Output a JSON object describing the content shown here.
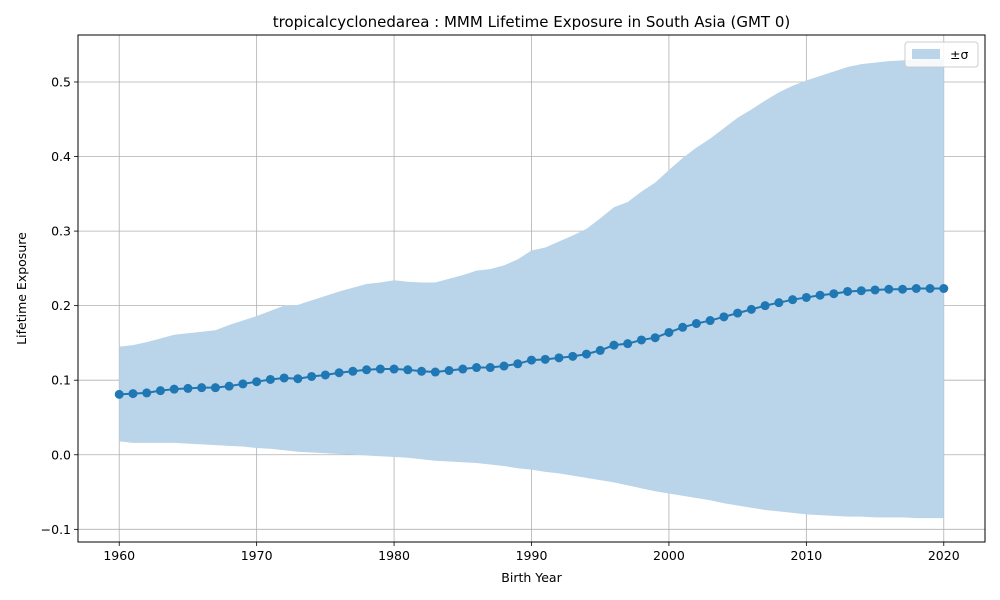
{
  "chart_data": {
    "type": "line",
    "title": "tropicalcyclonedarea : MMM Lifetime Exposure in South Asia (GMT 0)",
    "xlabel": "Birth Year",
    "ylabel": "Lifetime Exposure",
    "xlim": [
      1957,
      2023
    ],
    "ylim": [
      -0.117,
      0.563
    ],
    "xticks": [
      1960,
      1970,
      1980,
      1990,
      2000,
      2010,
      2020
    ],
    "xtick_labels": [
      "1960",
      "1970",
      "1980",
      "1990",
      "2000",
      "2010",
      "2020"
    ],
    "yticks": [
      -0.1,
      0.0,
      0.1,
      0.2,
      0.3,
      0.4,
      0.5
    ],
    "ytick_labels": [
      "−0.1",
      "0.0",
      "0.1",
      "0.2",
      "0.3",
      "0.4",
      "0.5"
    ],
    "grid": true,
    "legend_position": "top-right",
    "colors": {
      "line": "#1f77b4",
      "band": "#bad4e9",
      "grid": "#b0b0b0"
    },
    "x": [
      1960,
      1961,
      1962,
      1963,
      1964,
      1965,
      1966,
      1967,
      1968,
      1969,
      1970,
      1971,
      1972,
      1973,
      1974,
      1975,
      1976,
      1977,
      1978,
      1979,
      1980,
      1981,
      1982,
      1983,
      1984,
      1985,
      1986,
      1987,
      1988,
      1989,
      1990,
      1991,
      1992,
      1993,
      1994,
      1995,
      1996,
      1997,
      1998,
      1999,
      2000,
      2001,
      2002,
      2003,
      2004,
      2005,
      2006,
      2007,
      2008,
      2009,
      2010,
      2011,
      2012,
      2013,
      2014,
      2015,
      2016,
      2017,
      2018,
      2019,
      2020
    ],
    "series": [
      {
        "type": "line",
        "values": [
          0.081,
          0.082,
          0.083,
          0.086,
          0.088,
          0.089,
          0.09,
          0.09,
          0.092,
          0.095,
          0.098,
          0.101,
          0.103,
          0.102,
          0.105,
          0.107,
          0.11,
          0.112,
          0.114,
          0.115,
          0.115,
          0.114,
          0.112,
          0.111,
          0.113,
          0.115,
          0.117,
          0.117,
          0.119,
          0.122,
          0.127,
          0.128,
          0.13,
          0.132,
          0.135,
          0.14,
          0.147,
          0.149,
          0.154,
          0.157,
          0.164,
          0.171,
          0.176,
          0.18,
          0.185,
          0.19,
          0.195,
          0.2,
          0.204,
          0.208,
          0.211,
          0.214,
          0.216,
          0.219,
          0.22,
          0.221,
          0.222,
          0.222,
          0.223,
          0.223,
          0.223
        ]
      },
      {
        "type": "band",
        "name": "±σ",
        "upper": [
          0.145,
          0.147,
          0.151,
          0.156,
          0.161,
          0.163,
          0.165,
          0.167,
          0.174,
          0.18,
          0.186,
          0.193,
          0.2,
          0.201,
          0.207,
          0.213,
          0.219,
          0.224,
          0.229,
          0.231,
          0.234,
          0.232,
          0.231,
          0.231,
          0.236,
          0.241,
          0.247,
          0.249,
          0.254,
          0.262,
          0.274,
          0.278,
          0.286,
          0.294,
          0.303,
          0.317,
          0.332,
          0.339,
          0.353,
          0.365,
          0.382,
          0.398,
          0.412,
          0.424,
          0.438,
          0.452,
          0.463,
          0.475,
          0.486,
          0.495,
          0.502,
          0.508,
          0.514,
          0.52,
          0.524,
          0.526,
          0.528,
          0.529,
          0.53,
          0.531,
          0.531
        ],
        "lower": [
          0.018,
          0.016,
          0.016,
          0.016,
          0.016,
          0.015,
          0.014,
          0.013,
          0.012,
          0.011,
          0.009,
          0.008,
          0.006,
          0.004,
          0.003,
          0.002,
          0.001,
          0.0,
          -0.001,
          -0.002,
          -0.003,
          -0.004,
          -0.006,
          -0.008,
          -0.009,
          -0.01,
          -0.011,
          -0.013,
          -0.015,
          -0.018,
          -0.02,
          -0.023,
          -0.025,
          -0.028,
          -0.031,
          -0.034,
          -0.037,
          -0.041,
          -0.045,
          -0.049,
          -0.052,
          -0.055,
          -0.058,
          -0.061,
          -0.065,
          -0.068,
          -0.071,
          -0.074,
          -0.076,
          -0.078,
          -0.08,
          -0.081,
          -0.082,
          -0.083,
          -0.083,
          -0.084,
          -0.084,
          -0.084,
          -0.085,
          -0.085,
          -0.085
        ]
      }
    ]
  }
}
